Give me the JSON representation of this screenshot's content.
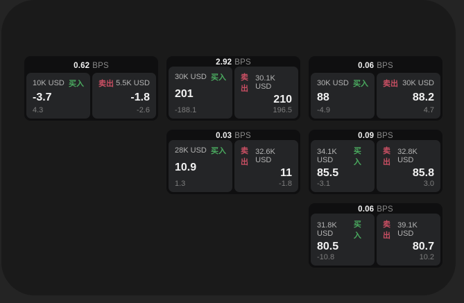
{
  "labels": {
    "bps_unit": "BPS",
    "buy": "买入",
    "sell": "卖出"
  },
  "colors": {
    "outer_bg": "#242424",
    "panel_bg": "#1a1a1a",
    "card_bg": "#0f0f10",
    "tile_bg": "#242527",
    "buy_green": "#4aaa5f",
    "sell_red": "#c94f63",
    "text_primary": "#f2f2f2",
    "text_muted": "#8a8a8a"
  },
  "cards": [
    {
      "row": 1,
      "col": 1,
      "bps": "0.62",
      "buy": {
        "size": "10K USD",
        "value": "-3.7",
        "sub": "4.3"
      },
      "sell": {
        "size": "5.5K USD",
        "value": "-1.8",
        "sub": "-2.6"
      }
    },
    {
      "row": 1,
      "col": 2,
      "bps": "2.92",
      "buy": {
        "size": "30K USD",
        "value": "201",
        "sub": "-188.1"
      },
      "sell": {
        "size": "30.1K USD",
        "value": "210",
        "sub": "196.5"
      }
    },
    {
      "row": 1,
      "col": 3,
      "bps": "0.06",
      "buy": {
        "size": "30K USD",
        "value": "88",
        "sub": "-4.9"
      },
      "sell": {
        "size": "30K USD",
        "value": "88.2",
        "sub": "4.7"
      }
    },
    {
      "row": 2,
      "col": 2,
      "bps": "0.03",
      "buy": {
        "size": "28K USD",
        "value": "10.9",
        "sub": "1.3"
      },
      "sell": {
        "size": "32.6K USD",
        "value": "11",
        "sub": "-1.8"
      }
    },
    {
      "row": 2,
      "col": 3,
      "bps": "0.09",
      "buy": {
        "size": "34.1K USD",
        "value": "85.5",
        "sub": "-3.1"
      },
      "sell": {
        "size": "32.8K USD",
        "value": "85.8",
        "sub": "3.0"
      }
    },
    {
      "row": 3,
      "col": 3,
      "bps": "0.06",
      "buy": {
        "size": "31.8K USD",
        "value": "80.5",
        "sub": "-10.8"
      },
      "sell": {
        "size": "39.1K USD",
        "value": "80.7",
        "sub": "10.2"
      }
    }
  ]
}
